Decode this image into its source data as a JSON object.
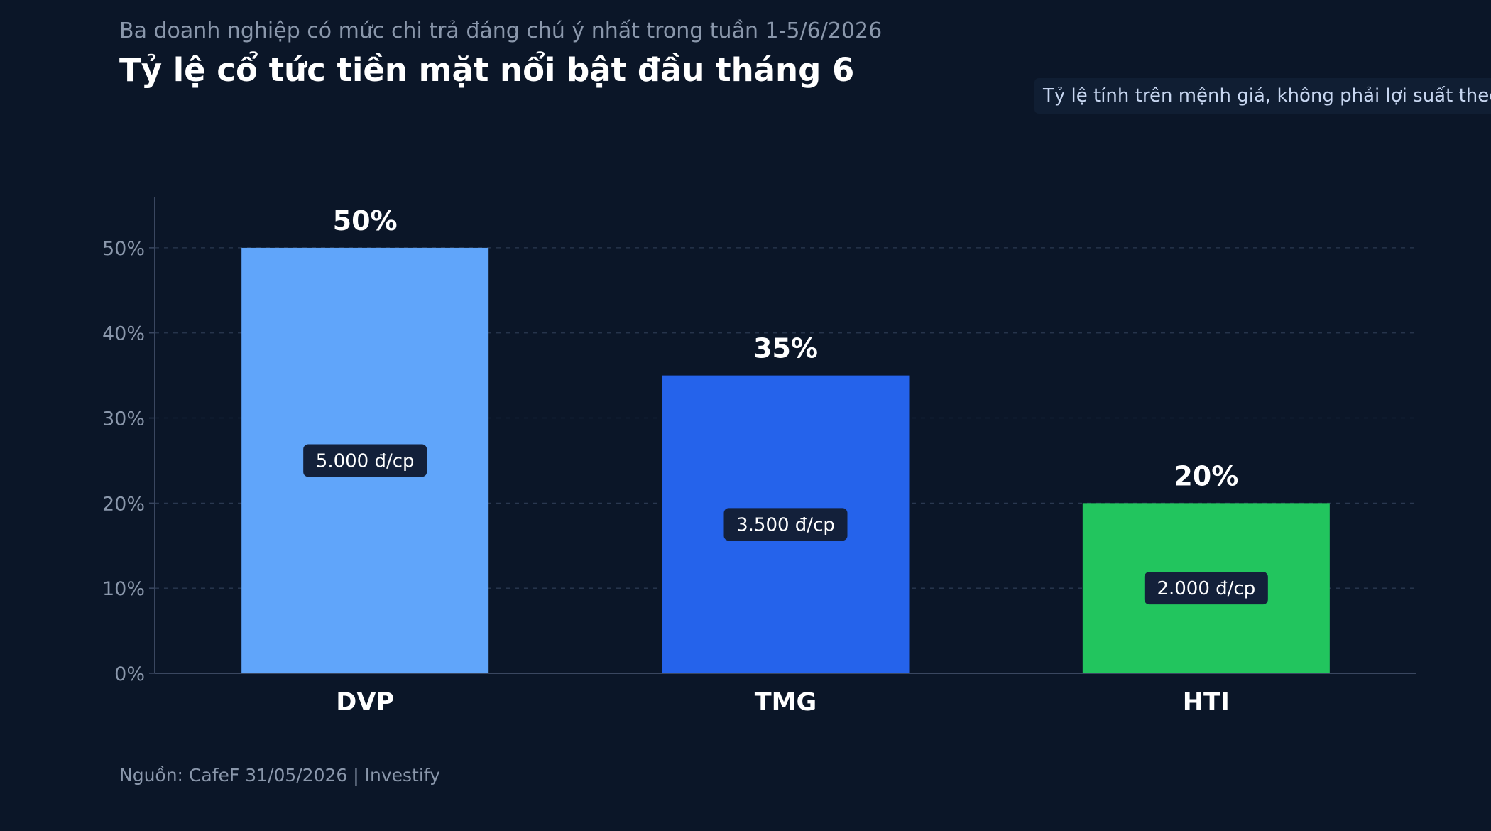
{
  "header": {
    "subtitle": "Ba doanh nghiệp có mức chi trả đáng chú ý nhất trong tuần 1-5/6/2026",
    "title": "Tỷ lệ cổ tức tiền mặt nổi bật đầu tháng 6",
    "note": "Tỷ lệ tính trên mệnh giá, không phải lợi suất theo giá thị trường"
  },
  "footer": {
    "source": "Nguồn: CafeF 31/05/2026 | Investify"
  },
  "colors": {
    "background": "#0b1628",
    "DVP": "#60a5fa",
    "TMG": "#2563eb",
    "HTI": "#22c55e",
    "badge": "#13203a"
  },
  "chart_data": {
    "type": "bar",
    "title": "Tỷ lệ cổ tức tiền mặt nổi bật đầu tháng 6",
    "xlabel": "",
    "ylabel": "",
    "categories": [
      "DVP",
      "TMG",
      "HTI"
    ],
    "values": [
      50,
      35,
      20
    ],
    "value_labels": [
      "50%",
      "35%",
      "20%"
    ],
    "inner_labels": [
      "5.000 đ/cp",
      "3.500 đ/cp",
      "2.000 đ/cp"
    ],
    "ylim": [
      0,
      56
    ],
    "yticks": [
      0,
      10,
      20,
      30,
      40,
      50
    ],
    "ytick_labels": [
      "0%",
      "10%",
      "20%",
      "30%",
      "40%",
      "50%"
    ],
    "grid": true,
    "legend": "none"
  }
}
